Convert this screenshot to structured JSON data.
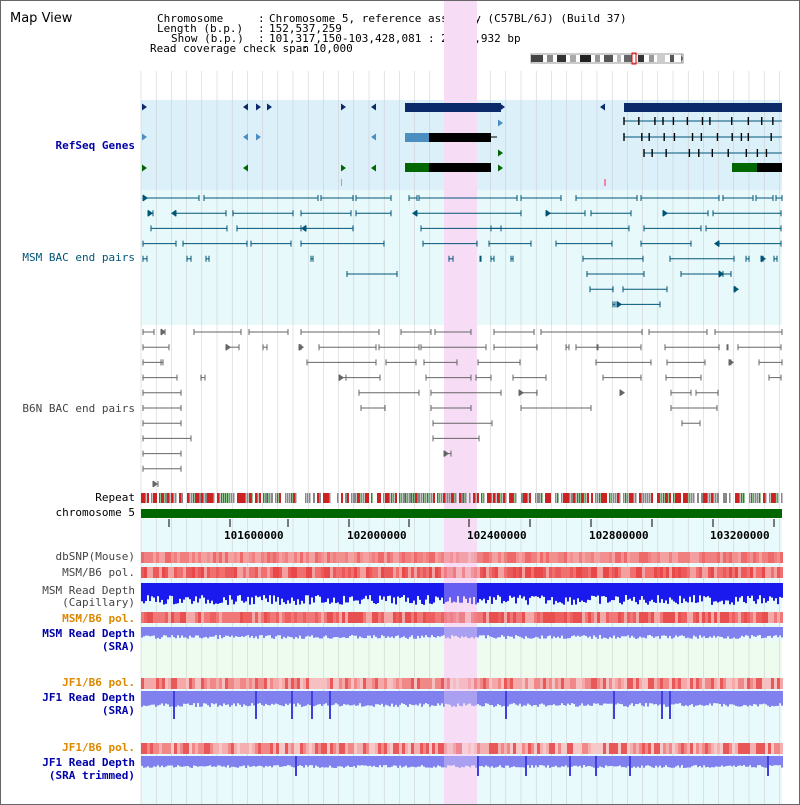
{
  "page_title": "Map View",
  "info": {
    "chromosome_key": "Chromosome",
    "chromosome_val": "Chromosome 5, reference assembly (C57BL/6J) (Build 37)",
    "length_key": "Length (b.p.)",
    "length_val": "152,537,259",
    "show_key": "Show (b.p.)",
    "show_val": "101,317,150-103,428,081 : 2,110,932 bp",
    "coverage_key": "Read coverage check span",
    "coverage_val": "10,000"
  },
  "colors": {
    "refseq": "#0000aa",
    "msm": "#005577",
    "b6n": "#444444",
    "orange": "#dd8800",
    "blue": "#0000aa",
    "highlight": "#f7dcf5"
  },
  "tracks": {
    "refseq": "RefSeq Genes",
    "msm_bac": "MSM BAC end pairs",
    "b6n_bac": "B6N BAC end pairs",
    "repeat": "Repeat",
    "chromosome": "chromosome 5",
    "dbsnp": "dbSNP(Mouse)",
    "msm_b6_pol": "MSM/B6 pol.",
    "msm_depth_cap_1": "MSM Read Depth",
    "msm_depth_cap_2": "(Capillary)",
    "msm_b6_pol_2": "MSM/B6 pol.",
    "msm_depth_sra_1": "MSM Read Depth",
    "msm_depth_sra_2": "(SRA)",
    "jf1_b6_pol": "JF1/B6 pol.",
    "jf1_depth_sra_1": "JF1 Read Depth",
    "jf1_depth_sra_2": "(SRA)",
    "jf1_b6_pol_2": "JF1/B6 pol.",
    "jf1_depth_trim_1": "JF1 Read Depth",
    "jf1_depth_trim_2": "(SRA trimmed)"
  },
  "axis_ticks": [
    "101600000",
    "102000000",
    "102400000",
    "102800000",
    "103200000"
  ]
}
